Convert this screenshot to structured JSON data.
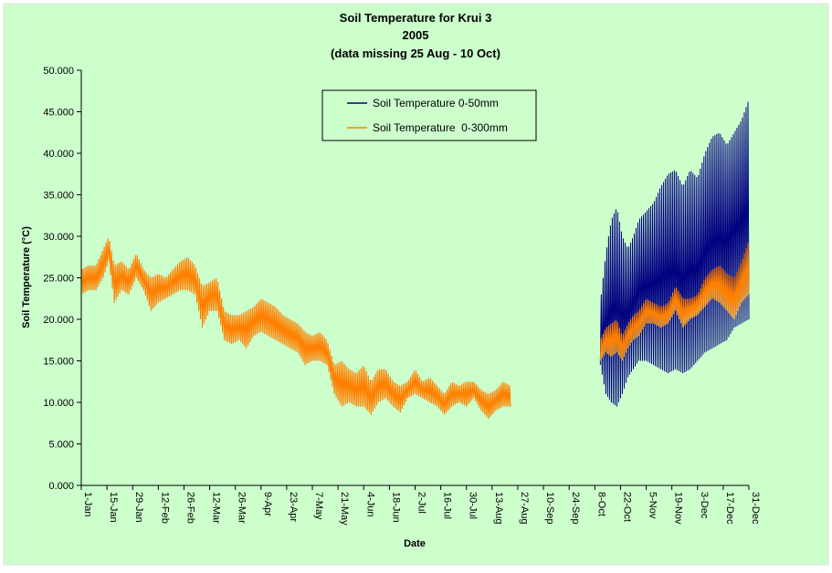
{
  "chart_data": {
    "type": "line",
    "title": [
      "Soil Temperature for Krui 3",
      "2005",
      "(data missing 25 Aug - 10 Oct)"
    ],
    "xlabel": "Date",
    "ylabel": "Soil Temperature (°C)",
    "xlim": [
      "1-Jan",
      "31-Dec"
    ],
    "ylim": [
      0,
      50
    ],
    "y_ticks": [
      "0.000",
      "5.000",
      "10.000",
      "15.000",
      "20.000",
      "25.000",
      "30.000",
      "35.000",
      "40.000",
      "45.000",
      "50.000"
    ],
    "x_tick_labels": [
      "1-Jan",
      "15-Jan",
      "29-Jan",
      "12-Feb",
      "26-Feb",
      "12-Mar",
      "26-Mar",
      "9-Apr",
      "23-Apr",
      "7-May",
      "21-May",
      "4-Jun",
      "18-Jun",
      "2-Jul",
      "16-Jul",
      "30-Jul",
      "13-Aug",
      "27-Aug",
      "10-Sep",
      "24-Sep",
      "8-Oct",
      "22-Oct",
      "5-Nov",
      "19-Nov",
      "3-Dec",
      "17-Dec",
      "31-Dec"
    ],
    "grid": false,
    "legend_position": "top-center",
    "series": [
      {
        "name": "Soil Temperature 0-50mm",
        "color": "#000080",
        "points": [
          {
            "x": "11-Oct",
            "min": 14.5,
            "max": 22.0
          },
          {
            "x": "14-Oct",
            "min": 11.0,
            "max": 28.0
          },
          {
            "x": "17-Oct",
            "min": 10.0,
            "max": 32.0
          },
          {
            "x": "20-Oct",
            "min": 9.5,
            "max": 33.5
          },
          {
            "x": "23-Oct",
            "min": 11.0,
            "max": 30.0
          },
          {
            "x": "26-Oct",
            "min": 13.0,
            "max": 28.5
          },
          {
            "x": "29-Oct",
            "min": 14.0,
            "max": 30.0
          },
          {
            "x": "1-Nov",
            "min": 15.0,
            "max": 32.0
          },
          {
            "x": "5-Nov",
            "min": 15.0,
            "max": 33.0
          },
          {
            "x": "9-Nov",
            "min": 14.5,
            "max": 34.0
          },
          {
            "x": "13-Nov",
            "min": 14.0,
            "max": 36.0
          },
          {
            "x": "17-Nov",
            "min": 13.5,
            "max": 37.5
          },
          {
            "x": "21-Nov",
            "min": 14.0,
            "max": 38.0
          },
          {
            "x": "25-Nov",
            "min": 13.5,
            "max": 36.0
          },
          {
            "x": "29-Nov",
            "min": 14.0,
            "max": 38.0
          },
          {
            "x": "3-Dec",
            "min": 15.0,
            "max": 37.0
          },
          {
            "x": "7-Dec",
            "min": 16.0,
            "max": 40.0
          },
          {
            "x": "11-Dec",
            "min": 16.5,
            "max": 42.0
          },
          {
            "x": "15-Dec",
            "min": 17.0,
            "max": 42.5
          },
          {
            "x": "19-Dec",
            "min": 17.5,
            "max": 41.0
          },
          {
            "x": "23-Dec",
            "min": 19.0,
            "max": 42.5
          },
          {
            "x": "27-Dec",
            "min": 19.5,
            "max": 44.0
          },
          {
            "x": "31-Dec",
            "min": 20.0,
            "max": 46.5
          }
        ]
      },
      {
        "name": "Soil Temperature  0-300mm",
        "color": "#ff8000",
        "points": [
          {
            "x": "1-Jan",
            "min": 23.0,
            "max": 26.0
          },
          {
            "x": "5-Jan",
            "min": 23.5,
            "max": 26.5
          },
          {
            "x": "9-Jan",
            "min": 23.5,
            "max": 26.5
          },
          {
            "x": "13-Jan",
            "min": 25.0,
            "max": 28.5
          },
          {
            "x": "16-Jan",
            "min": 27.0,
            "max": 30.0
          },
          {
            "x": "19-Jan",
            "min": 22.0,
            "max": 26.5
          },
          {
            "x": "23-Jan",
            "min": 23.5,
            "max": 27.0
          },
          {
            "x": "27-Jan",
            "min": 23.0,
            "max": 26.0
          },
          {
            "x": "31-Jan",
            "min": 25.0,
            "max": 28.0
          },
          {
            "x": "4-Feb",
            "min": 23.5,
            "max": 26.0
          },
          {
            "x": "8-Feb",
            "min": 21.0,
            "max": 25.0
          },
          {
            "x": "12-Feb",
            "min": 22.0,
            "max": 25.5
          },
          {
            "x": "16-Feb",
            "min": 22.5,
            "max": 25.0
          },
          {
            "x": "20-Feb",
            "min": 23.0,
            "max": 26.0
          },
          {
            "x": "24-Feb",
            "min": 23.5,
            "max": 27.0
          },
          {
            "x": "28-Feb",
            "min": 23.5,
            "max": 27.5
          },
          {
            "x": "4-Mar",
            "min": 23.0,
            "max": 26.5
          },
          {
            "x": "8-Mar",
            "min": 19.0,
            "max": 24.0
          },
          {
            "x": "12-Mar",
            "min": 21.0,
            "max": 24.5
          },
          {
            "x": "16-Mar",
            "min": 21.0,
            "max": 25.0
          },
          {
            "x": "20-Mar",
            "min": 17.5,
            "max": 21.0
          },
          {
            "x": "24-Mar",
            "min": 17.0,
            "max": 20.5
          },
          {
            "x": "28-Mar",
            "min": 17.5,
            "max": 20.5
          },
          {
            "x": "1-Apr",
            "min": 16.5,
            "max": 21.0
          },
          {
            "x": "5-Apr",
            "min": 18.0,
            "max": 21.5
          },
          {
            "x": "9-Apr",
            "min": 18.5,
            "max": 22.5
          },
          {
            "x": "13-Apr",
            "min": 18.0,
            "max": 22.0
          },
          {
            "x": "17-Apr",
            "min": 17.5,
            "max": 21.5
          },
          {
            "x": "21-Apr",
            "min": 17.0,
            "max": 20.5
          },
          {
            "x": "25-Apr",
            "min": 16.5,
            "max": 20.0
          },
          {
            "x": "29-Apr",
            "min": 16.0,
            "max": 19.5
          },
          {
            "x": "3-May",
            "min": 14.5,
            "max": 18.5
          },
          {
            "x": "7-May",
            "min": 15.0,
            "max": 18.0
          },
          {
            "x": "11-May",
            "min": 15.0,
            "max": 18.5
          },
          {
            "x": "15-May",
            "min": 14.5,
            "max": 17.5
          },
          {
            "x": "19-May",
            "min": 11.0,
            "max": 14.5
          },
          {
            "x": "23-May",
            "min": 9.5,
            "max": 15.0
          },
          {
            "x": "27-May",
            "min": 10.0,
            "max": 14.0
          },
          {
            "x": "31-May",
            "min": 9.5,
            "max": 13.5
          },
          {
            "x": "4-Jun",
            "min": 9.5,
            "max": 14.5
          },
          {
            "x": "8-Jun",
            "min": 8.5,
            "max": 12.5
          },
          {
            "x": "12-Jun",
            "min": 10.0,
            "max": 14.0
          },
          {
            "x": "16-Jun",
            "min": 10.5,
            "max": 14.0
          },
          {
            "x": "20-Jun",
            "min": 9.5,
            "max": 12.5
          },
          {
            "x": "24-Jun",
            "min": 8.8,
            "max": 12.0
          },
          {
            "x": "28-Jun",
            "min": 10.5,
            "max": 12.5
          },
          {
            "x": "2-Jul",
            "min": 11.0,
            "max": 14.0
          },
          {
            "x": "6-Jul",
            "min": 10.5,
            "max": 12.5
          },
          {
            "x": "10-Jul",
            "min": 10.0,
            "max": 13.0
          },
          {
            "x": "14-Jul",
            "min": 9.5,
            "max": 12.0
          },
          {
            "x": "18-Jul",
            "min": 8.5,
            "max": 11.0
          },
          {
            "x": "22-Jul",
            "min": 9.5,
            "max": 12.5
          },
          {
            "x": "26-Jul",
            "min": 10.0,
            "max": 12.0
          },
          {
            "x": "30-Jul",
            "min": 9.5,
            "max": 12.5
          },
          {
            "x": "3-Aug",
            "min": 10.5,
            "max": 12.5
          },
          {
            "x": "7-Aug",
            "min": 9.0,
            "max": 11.5
          },
          {
            "x": "11-Aug",
            "min": 8.0,
            "max": 11.0
          },
          {
            "x": "15-Aug",
            "min": 9.0,
            "max": 11.5
          },
          {
            "x": "19-Aug",
            "min": 9.5,
            "max": 12.5
          },
          {
            "x": "23-Aug",
            "min": 9.5,
            "max": 12.0
          },
          {
            "x": "11-Oct",
            "min": 15.0,
            "max": 17.5
          },
          {
            "x": "14-Oct",
            "min": 16.0,
            "max": 19.0
          },
          {
            "x": "17-Oct",
            "min": 15.5,
            "max": 19.5
          },
          {
            "x": "20-Oct",
            "min": 16.0,
            "max": 20.0
          },
          {
            "x": "23-Oct",
            "min": 15.0,
            "max": 18.0
          },
          {
            "x": "26-Oct",
            "min": 16.5,
            "max": 19.5
          },
          {
            "x": "29-Oct",
            "min": 17.5,
            "max": 20.5
          },
          {
            "x": "1-Nov",
            "min": 18.0,
            "max": 21.0
          },
          {
            "x": "5-Nov",
            "min": 19.5,
            "max": 22.5
          },
          {
            "x": "9-Nov",
            "min": 19.5,
            "max": 22.0
          },
          {
            "x": "13-Nov",
            "min": 19.0,
            "max": 21.5
          },
          {
            "x": "17-Nov",
            "min": 19.5,
            "max": 22.0
          },
          {
            "x": "21-Nov",
            "min": 21.0,
            "max": 24.0
          },
          {
            "x": "25-Nov",
            "min": 19.0,
            "max": 22.5
          },
          {
            "x": "29-Nov",
            "min": 20.0,
            "max": 22.5
          },
          {
            "x": "3-Dec",
            "min": 20.5,
            "max": 23.0
          },
          {
            "x": "7-Dec",
            "min": 21.5,
            "max": 25.0
          },
          {
            "x": "11-Dec",
            "min": 22.5,
            "max": 26.0
          },
          {
            "x": "15-Dec",
            "min": 22.0,
            "max": 26.5
          },
          {
            "x": "19-Dec",
            "min": 21.0,
            "max": 25.5
          },
          {
            "x": "23-Dec",
            "min": 20.0,
            "max": 25.0
          },
          {
            "x": "27-Dec",
            "min": 22.0,
            "max": 27.0
          },
          {
            "x": "31-Dec",
            "min": 23.0,
            "max": 29.5
          }
        ]
      }
    ]
  }
}
